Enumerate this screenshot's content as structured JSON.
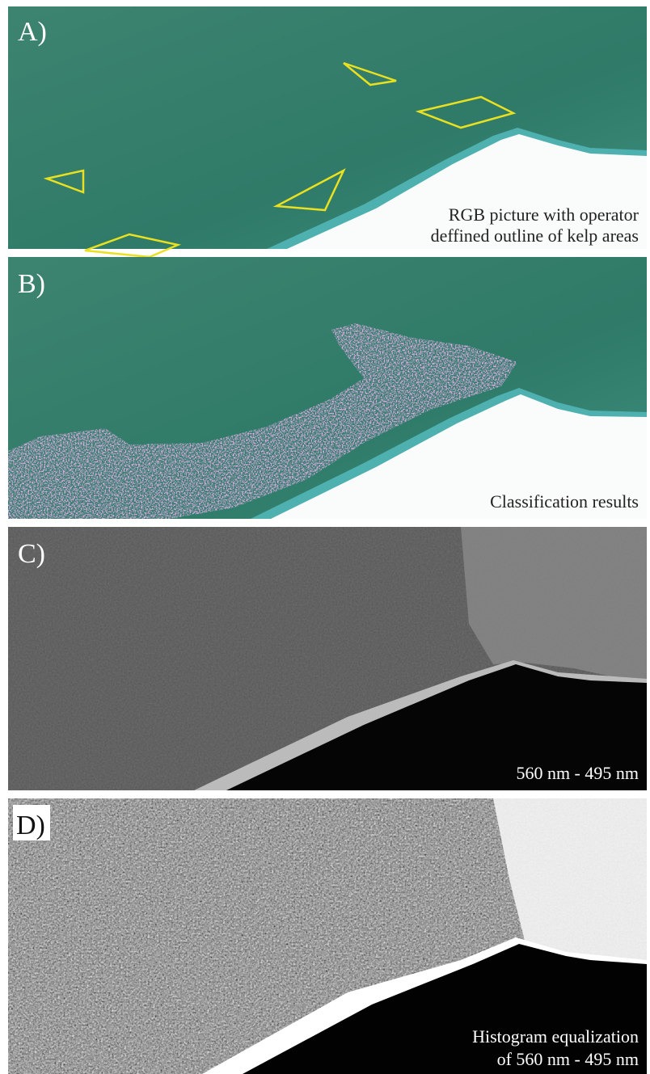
{
  "panels": [
    {
      "label": "A)",
      "caption": [
        "RGB picture with operator",
        "deffined outline of kelp areas"
      ]
    },
    {
      "label": "B)",
      "caption": [
        "Classification results"
      ]
    },
    {
      "label": "C)",
      "caption": [
        "560 nm - 495 nm"
      ]
    },
    {
      "label": "D)",
      "caption": [
        "Histogram  equalization",
        "of 560 nm - 495 nm"
      ]
    }
  ]
}
